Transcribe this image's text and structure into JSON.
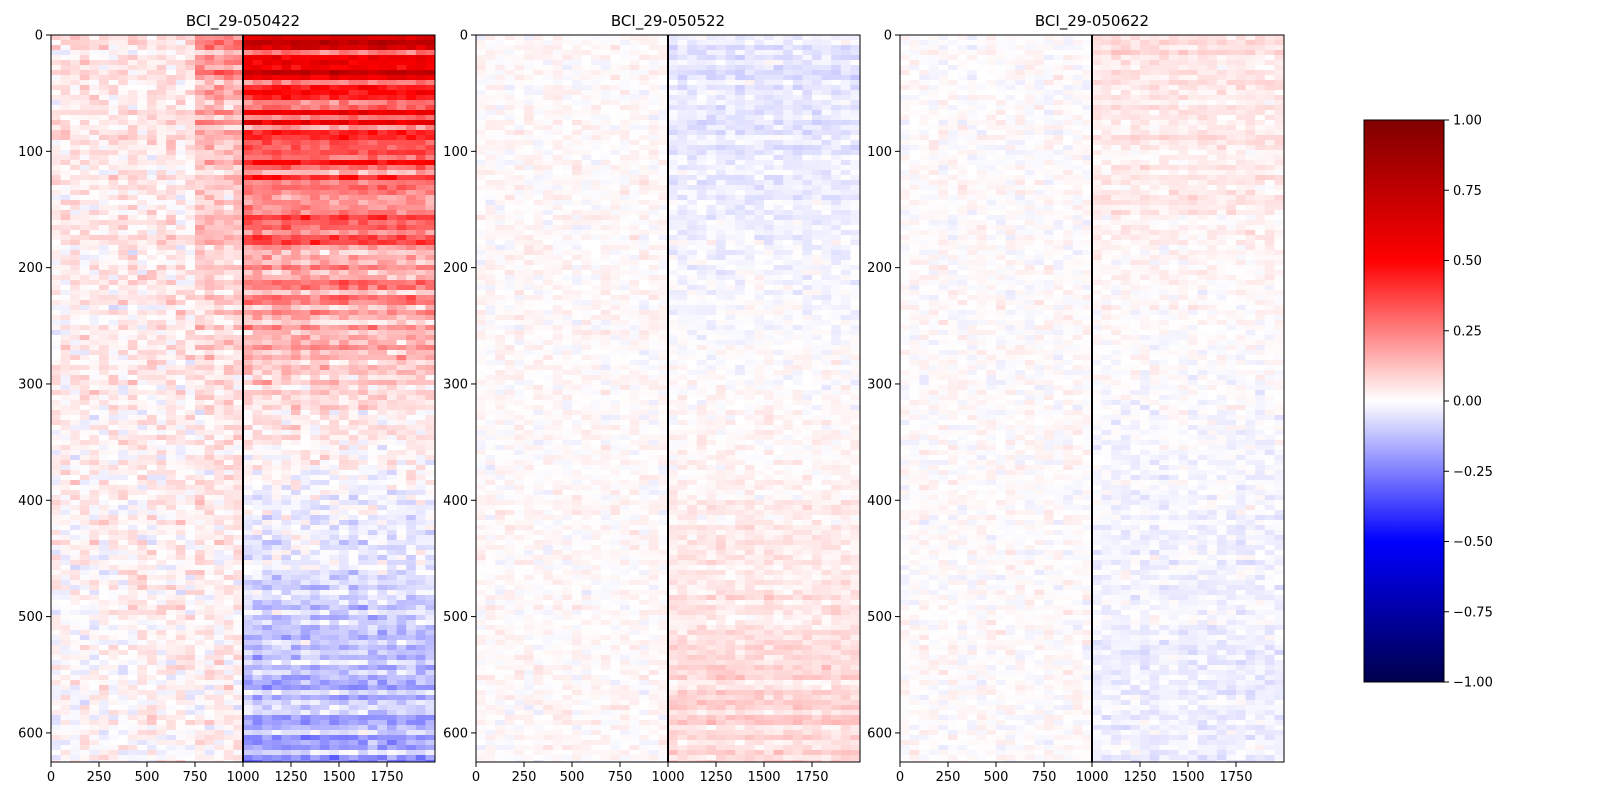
{
  "chart_data": {
    "type": "heatmap",
    "panels": [
      {
        "title": "BCI_29-050422",
        "x_ticks": [
          0,
          250,
          500,
          750,
          1000,
          1250,
          1500,
          1750
        ],
        "y_ticks": [
          0,
          100,
          200,
          300,
          400,
          500,
          600
        ],
        "xlim": [
          0,
          2000
        ],
        "ylim": [
          625,
          0
        ],
        "vline_x": 1000,
        "pattern": "rows sorted by response; strong positive (red) after x=1000 in top rows, negative (blue) after x=1000 in bottom rows"
      },
      {
        "title": "BCI_29-050522",
        "x_ticks": [
          0,
          250,
          500,
          750,
          1000,
          1250,
          1500,
          1750
        ],
        "y_ticks": [
          0,
          100,
          200,
          300,
          400,
          500,
          600
        ],
        "xlim": [
          0,
          2000
        ],
        "ylim": [
          625,
          0
        ],
        "vline_x": 1000,
        "pattern": "weak values near zero; faint blue in top-right, faint red in bottom-right"
      },
      {
        "title": "BCI_29-050622",
        "x_ticks": [
          0,
          250,
          500,
          750,
          1000,
          1250,
          1500,
          1750
        ],
        "y_ticks": [
          0,
          100,
          200,
          300,
          400,
          500,
          600
        ],
        "xlim": [
          0,
          2000
        ],
        "ylim": [
          625,
          0
        ],
        "vline_x": 1000,
        "pattern": "weak values near zero; faint red in top rows after x=1000, faint blue in bottom rows after x=1000"
      }
    ],
    "colorbar": {
      "colormap": "seismic",
      "vmin": -1.0,
      "vmax": 1.0,
      "ticks": [
        "1.00",
        "0.75",
        "0.50",
        "0.25",
        "0.00",
        "−0.25",
        "−0.50",
        "−0.75",
        "−1.00"
      ]
    },
    "grid": false,
    "legend": "none"
  },
  "colors": {
    "dark_red": "#800000",
    "red": "#ff0000",
    "white": "#ffffff",
    "blue": "#0000ff",
    "dark_blue": "#00004c",
    "axis": "#000000"
  }
}
